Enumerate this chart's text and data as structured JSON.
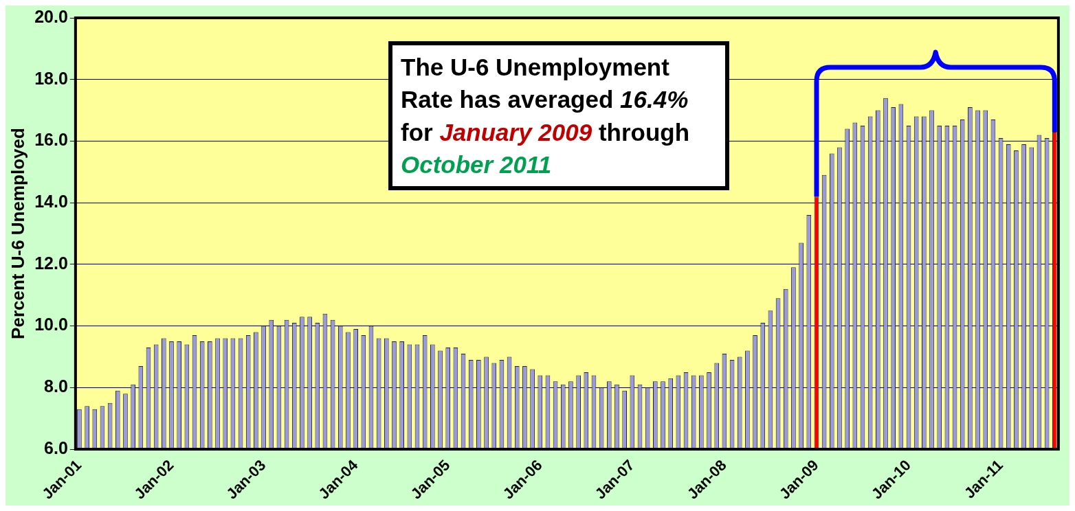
{
  "chart_data": {
    "type": "bar",
    "ylabel": "Percent U-6 Unemployed",
    "categories": [
      "Jan-01",
      null,
      null,
      null,
      null,
      null,
      null,
      null,
      null,
      null,
      null,
      null,
      "Jan-02",
      null,
      null,
      null,
      null,
      null,
      null,
      null,
      null,
      null,
      null,
      null,
      "Jan-03",
      null,
      null,
      null,
      null,
      null,
      null,
      null,
      null,
      null,
      null,
      null,
      "Jan-04",
      null,
      null,
      null,
      null,
      null,
      null,
      null,
      null,
      null,
      null,
      null,
      "Jan-05",
      null,
      null,
      null,
      null,
      null,
      null,
      null,
      null,
      null,
      null,
      null,
      "Jan-06",
      null,
      null,
      null,
      null,
      null,
      null,
      null,
      null,
      null,
      null,
      null,
      "Jan-07",
      null,
      null,
      null,
      null,
      null,
      null,
      null,
      null,
      null,
      null,
      null,
      "Jan-08",
      null,
      null,
      null,
      null,
      null,
      null,
      null,
      null,
      null,
      null,
      null,
      "Jan-09",
      null,
      null,
      null,
      null,
      null,
      null,
      null,
      null,
      null,
      null,
      null,
      "Jan-10",
      null,
      null,
      null,
      null,
      null,
      null,
      null,
      null,
      null,
      null,
      null,
      "Jan-11",
      null,
      null,
      null,
      null,
      null,
      null,
      null
    ],
    "values": [
      7.3,
      7.4,
      7.3,
      7.4,
      7.5,
      7.9,
      7.8,
      8.1,
      8.7,
      9.3,
      9.4,
      9.6,
      9.5,
      9.5,
      9.4,
      9.7,
      9.5,
      9.5,
      9.6,
      9.6,
      9.6,
      9.6,
      9.7,
      9.8,
      10.0,
      10.2,
      10.0,
      10.2,
      10.1,
      10.3,
      10.3,
      10.1,
      10.4,
      10.2,
      10.0,
      9.8,
      9.9,
      9.7,
      10.0,
      9.6,
      9.6,
      9.5,
      9.5,
      9.4,
      9.4,
      9.7,
      9.4,
      9.2,
      9.3,
      9.3,
      9.1,
      8.9,
      8.9,
      9.0,
      8.8,
      8.9,
      9.0,
      8.7,
      8.7,
      8.6,
      8.4,
      8.4,
      8.2,
      8.1,
      8.2,
      8.4,
      8.5,
      8.4,
      8.0,
      8.2,
      8.1,
      7.9,
      8.4,
      8.1,
      8.0,
      8.2,
      8.2,
      8.3,
      8.4,
      8.5,
      8.4,
      8.4,
      8.5,
      8.8,
      9.1,
      8.9,
      9.0,
      9.2,
      9.7,
      10.1,
      10.5,
      10.9,
      11.2,
      11.9,
      12.7,
      13.6,
      14.2,
      14.9,
      15.6,
      15.8,
      16.4,
      16.6,
      16.5,
      16.8,
      17.0,
      17.4,
      17.1,
      17.2,
      16.5,
      16.8,
      16.8,
      17.0,
      16.5,
      16.5,
      16.5,
      16.7,
      17.1,
      17.0,
      17.0,
      16.7,
      16.1,
      15.9,
      15.7,
      15.9,
      15.8,
      16.2,
      16.1,
      16.3
    ],
    "color": "#9999dd",
    "colors": [
      "#9999dd",
      "#9999dd",
      "#9999dd",
      "#9999dd",
      "#9999dd",
      "#9999dd",
      "#9999dd",
      "#9999dd",
      "#9999dd",
      "#9999dd",
      "#9999dd",
      "#9999dd",
      "#9999dd",
      "#9999dd",
      "#9999dd",
      "#9999dd",
      "#9999dd",
      "#9999dd",
      "#9999dd",
      "#9999dd",
      "#9999dd",
      "#9999dd",
      "#9999dd",
      "#9999dd",
      "#9999dd",
      "#9999dd",
      "#9999dd",
      "#9999dd",
      "#9999dd",
      "#9999dd",
      "#9999dd",
      "#9999dd",
      "#9999dd",
      "#9999dd",
      "#9999dd",
      "#9999dd",
      "#9999dd",
      "#9999dd",
      "#9999dd",
      "#9999dd",
      "#9999dd",
      "#9999dd",
      "#9999dd",
      "#9999dd",
      "#9999dd",
      "#9999dd",
      "#9999dd",
      "#9999dd",
      "#9999dd",
      "#9999dd",
      "#9999dd",
      "#9999dd",
      "#9999dd",
      "#9999dd",
      "#9999dd",
      "#9999dd",
      "#9999dd",
      "#9999dd",
      "#9999dd",
      "#9999dd",
      "#9999dd",
      "#9999dd",
      "#9999dd",
      "#9999dd",
      "#9999dd",
      "#9999dd",
      "#9999dd",
      "#9999dd",
      "#9999dd",
      "#9999dd",
      "#9999dd",
      "#9999dd",
      "#9999dd",
      "#9999dd",
      "#9999dd",
      "#9999dd",
      "#9999dd",
      "#9999dd",
      "#9999dd",
      "#9999dd",
      "#9999dd",
      "#9999dd",
      "#9999dd",
      "#9999dd",
      "#9999dd",
      "#9999dd",
      "#9999dd",
      "#9999dd",
      "#9999dd",
      "#9999dd",
      "#9999dd",
      "#9999dd",
      "#9999dd",
      "#9999dd",
      "#9999dd",
      "#9999dd",
      "#ff0000",
      "#9999dd",
      "#9999dd",
      "#9999dd",
      "#9999dd",
      "#9999dd",
      "#9999dd",
      "#9999dd",
      "#9999dd",
      "#9999dd",
      "#9999dd",
      "#9999dd",
      "#9999dd",
      "#9999dd",
      "#9999dd",
      "#9999dd",
      "#9999dd",
      "#9999dd",
      "#9999dd",
      "#9999dd",
      "#9999dd",
      "#9999dd",
      "#9999dd",
      "#9999dd",
      "#9999dd",
      "#9999dd",
      "#9999dd",
      "#9999dd",
      "#9999dd",
      "#9999dd",
      "#9999dd",
      "#ff0000"
    ],
    "ylim": [
      6,
      20
    ],
    "yticks": [
      {
        "value": 6,
        "label": "6.0"
      },
      {
        "value": 8,
        "label": "8.0"
      },
      {
        "value": 10,
        "label": "10.0"
      },
      {
        "value": 12,
        "label": "12.0"
      },
      {
        "value": 14,
        "label": "14.0"
      },
      {
        "value": 16,
        "label": "16.0"
      },
      {
        "value": 18,
        "label": "18.0"
      },
      {
        "value": 20,
        "label": "20.0"
      }
    ],
    "grid": "y",
    "legend": false,
    "annotations": [
      "The U-6 Unemployment Rate has averaged",
      "16.4%",
      "for",
      "January 2009",
      "through",
      "October 2011"
    ]
  }
}
